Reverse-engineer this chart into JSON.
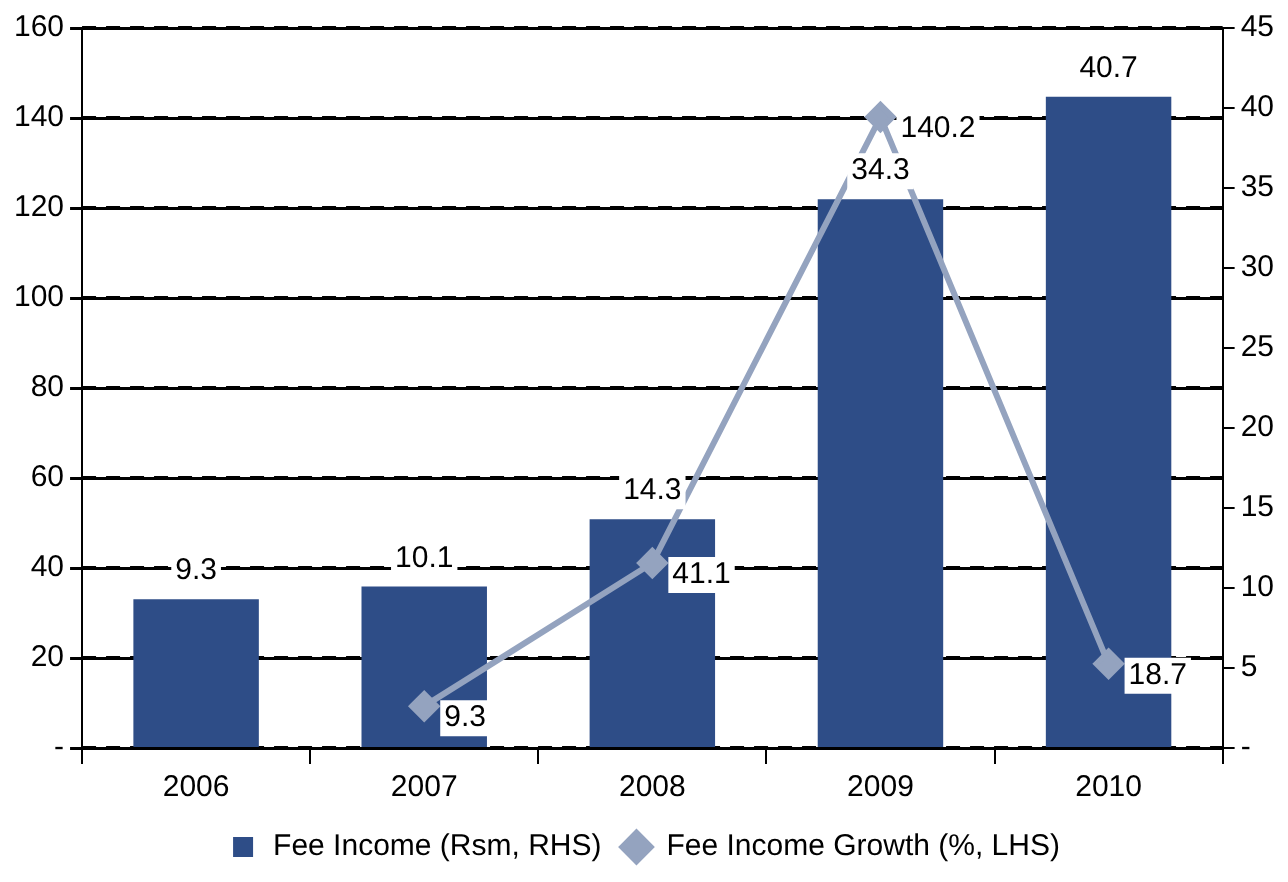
{
  "chart_data": {
    "type": "bar",
    "categories": [
      "2006",
      "2007",
      "2008",
      "2009",
      "2010"
    ],
    "series": [
      {
        "name": "Fee Income (Rsm, RHS)",
        "axis": "y2",
        "color": "#2e4d87",
        "values": [
          9.3,
          10.1,
          14.3,
          34.3,
          40.7
        ]
      },
      {
        "name": "Fee Income Growth (%, LHS)",
        "type": "line",
        "axis": "y",
        "color": "#94a3bf",
        "values": [
          null,
          9.3,
          41.1,
          140.2,
          18.7
        ]
      }
    ],
    "ylim": [
      0,
      160
    ],
    "yticks": [
      {
        "value": 0,
        "label": "-"
      },
      20,
      40,
      60,
      80,
      100,
      120,
      140,
      160
    ],
    "y2lim": [
      0,
      45
    ],
    "y2ticks": [
      {
        "value": 0,
        "label": "-"
      },
      5,
      10,
      15,
      20,
      25,
      30,
      35,
      40,
      45
    ],
    "grid": "y",
    "legend": "bottom",
    "marker": "diamond",
    "line_style": "solid",
    "data_labels": true
  }
}
